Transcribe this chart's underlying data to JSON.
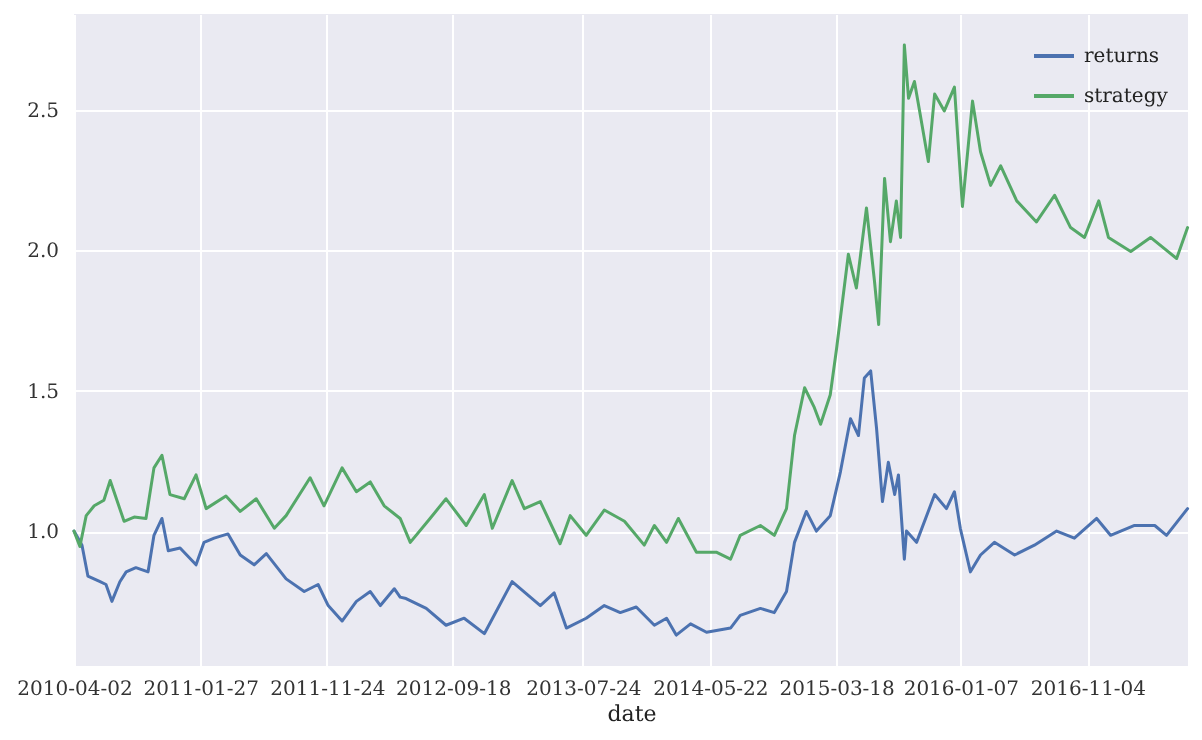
{
  "chart_data": {
    "type": "line",
    "xlabel": "date",
    "grid": true,
    "legend": "top right",
    "line_style": "solid",
    "xlim": [
      "2010-04-02",
      "2017-07-01"
    ],
    "xticks": [
      "2010-04-02",
      "2011-01-27",
      "2011-11-24",
      "2012-09-18",
      "2013-07-24",
      "2014-05-22",
      "2015-03-18",
      "2016-01-07",
      "2016-11-04"
    ],
    "ylim": [
      0.52,
      2.84
    ],
    "yticks": [
      {
        "value": 1,
        "label": "1.0"
      },
      {
        "value": 1.5,
        "label": "1.5"
      },
      {
        "value": 2,
        "label": "2.0"
      },
      {
        "value": 2.5,
        "label": "2.5"
      }
    ],
    "series": [
      {
        "name": "returns",
        "color": "#4c72b0",
        "x": [
          "2010-04-02",
          "2010-04-21",
          "2010-05-05",
          "2010-06-03",
          "2010-06-17",
          "2010-07-01",
          "2010-07-20",
          "2010-08-04",
          "2010-08-27",
          "2010-09-25",
          "2010-10-09",
          "2010-10-28",
          "2010-11-12",
          "2010-12-10",
          "2011-01-17",
          "2011-02-05",
          "2011-03-01",
          "2011-04-03",
          "2011-05-02",
          "2011-06-04",
          "2011-07-03",
          "2011-08-19",
          "2011-10-01",
          "2011-11-03",
          "2011-11-27",
          "2011-12-30",
          "2012-02-02",
          "2012-03-06",
          "2012-03-30",
          "2012-05-02",
          "2012-05-16",
          "2012-05-30",
          "2012-07-17",
          "2012-09-02",
          "2012-10-15",
          "2012-12-02",
          "2013-02-06",
          "2013-04-14",
          "2013-05-17",
          "2013-06-15",
          "2013-08-01",
          "2013-09-13",
          "2013-10-21",
          "2013-11-28",
          "2014-01-10",
          "2014-02-08",
          "2014-03-03",
          "2014-04-06",
          "2014-05-14",
          "2014-07-10",
          "2014-08-02",
          "2014-09-19",
          "2014-10-22",
          "2014-11-20",
          "2014-12-09",
          "2015-01-06",
          "2015-01-30",
          "2015-03-04",
          "2015-03-28",
          "2015-04-21",
          "2015-05-10",
          "2015-05-24",
          "2015-06-08",
          "2015-06-22",
          "2015-07-06",
          "2015-07-20",
          "2015-08-04",
          "2015-08-13",
          "2015-08-27",
          "2015-09-01",
          "2015-09-25",
          "2015-11-07",
          "2015-12-05",
          "2015-12-24",
          "2016-01-07",
          "2016-01-31",
          "2016-02-24",
          "2016-03-28",
          "2016-05-15",
          "2016-07-01",
          "2016-08-23",
          "2016-10-04",
          "2016-11-26",
          "2016-12-29",
          "2017-02-24",
          "2017-04-13",
          "2017-05-11",
          "2017-06-30"
        ],
        "values": [
          1.0,
          0.95,
          0.84,
          0.82,
          0.81,
          0.75,
          0.82,
          0.855,
          0.87,
          0.855,
          0.985,
          1.045,
          0.93,
          0.94,
          0.88,
          0.96,
          0.975,
          0.99,
          0.915,
          0.88,
          0.92,
          0.83,
          0.785,
          0.81,
          0.735,
          0.68,
          0.75,
          0.785,
          0.735,
          0.795,
          0.765,
          0.76,
          0.725,
          0.665,
          0.69,
          0.635,
          0.82,
          0.735,
          0.78,
          0.655,
          0.69,
          0.735,
          0.71,
          0.73,
          0.665,
          0.69,
          0.63,
          0.67,
          0.64,
          0.655,
          0.7,
          0.725,
          0.71,
          0.785,
          0.96,
          1.07,
          1.0,
          1.055,
          1.21,
          1.4,
          1.34,
          1.545,
          1.57,
          1.365,
          1.105,
          1.245,
          1.13,
          1.2,
          0.9,
          1.0,
          0.96,
          1.13,
          1.08,
          1.14,
          1.01,
          0.855,
          0.915,
          0.96,
          0.915,
          0.95,
          1.0,
          0.975,
          1.045,
          0.985,
          1.02,
          1.02,
          0.985,
          1.08
        ]
      },
      {
        "name": "strategy",
        "color": "#55a868",
        "x": [
          "2010-04-02",
          "2010-04-16",
          "2010-05-01",
          "2010-05-20",
          "2010-06-12",
          "2010-06-27",
          "2010-07-30",
          "2010-08-23",
          "2010-09-20",
          "2010-10-09",
          "2010-10-28",
          "2010-11-16",
          "2010-12-20",
          "2011-01-17",
          "2011-02-10",
          "2011-03-29",
          "2011-05-02",
          "2011-06-09",
          "2011-07-22",
          "2011-08-19",
          "2011-10-15",
          "2011-11-17",
          "2011-12-30",
          "2012-02-02",
          "2012-03-06",
          "2012-04-08",
          "2012-05-16",
          "2012-06-09",
          "2012-07-26",
          "2012-09-02",
          "2012-10-20",
          "2012-12-02",
          "2012-12-21",
          "2013-02-06",
          "2013-03-07",
          "2013-04-14",
          "2013-05-31",
          "2013-06-24",
          "2013-08-01",
          "2013-09-13",
          "2013-10-31",
          "2013-12-17",
          "2014-01-10",
          "2014-02-08",
          "2014-03-08",
          "2014-04-20",
          "2014-06-06",
          "2014-07-10",
          "2014-08-02",
          "2014-09-19",
          "2014-10-22",
          "2014-11-20",
          "2014-12-09",
          "2015-01-02",
          "2015-01-25",
          "2015-02-09",
          "2015-03-04",
          "2015-03-19",
          "2015-04-16",
          "2015-05-05",
          "2015-05-29",
          "2015-06-17",
          "2015-06-27",
          "2015-07-11",
          "2015-07-25",
          "2015-08-08",
          "2015-08-18",
          "2015-08-27",
          "2015-09-06",
          "2015-09-20",
          "2015-10-04",
          "2015-10-23",
          "2015-11-07",
          "2015-11-30",
          "2015-12-24",
          "2016-01-12",
          "2016-02-05",
          "2016-02-24",
          "2016-03-19",
          "2016-04-12",
          "2016-05-20",
          "2016-07-06",
          "2016-08-18",
          "2016-09-25",
          "2016-10-28",
          "2016-12-01",
          "2016-12-24",
          "2017-02-15",
          "2017-04-03",
          "2017-06-04",
          "2017-06-30"
        ],
        "values": [
          1.0,
          0.945,
          1.055,
          1.09,
          1.11,
          1.18,
          1.035,
          1.05,
          1.045,
          1.225,
          1.27,
          1.13,
          1.115,
          1.2,
          1.08,
          1.125,
          1.07,
          1.115,
          1.01,
          1.055,
          1.19,
          1.09,
          1.225,
          1.14,
          1.175,
          1.09,
          1.045,
          0.96,
          1.045,
          1.115,
          1.02,
          1.13,
          1.01,
          1.18,
          1.08,
          1.105,
          0.955,
          1.055,
          0.985,
          1.075,
          1.035,
          0.95,
          1.02,
          0.96,
          1.045,
          0.925,
          0.925,
          0.9,
          0.985,
          1.02,
          0.985,
          1.08,
          1.34,
          1.51,
          1.44,
          1.38,
          1.485,
          1.65,
          1.985,
          1.865,
          2.15,
          1.89,
          1.735,
          2.255,
          2.03,
          2.175,
          2.045,
          2.73,
          2.54,
          2.6,
          2.48,
          2.315,
          2.555,
          2.495,
          2.58,
          2.155,
          2.53,
          2.35,
          2.23,
          2.3,
          2.175,
          2.1,
          2.195,
          2.08,
          2.045,
          2.175,
          2.045,
          1.995,
          2.045,
          1.97,
          2.08
        ]
      }
    ]
  }
}
